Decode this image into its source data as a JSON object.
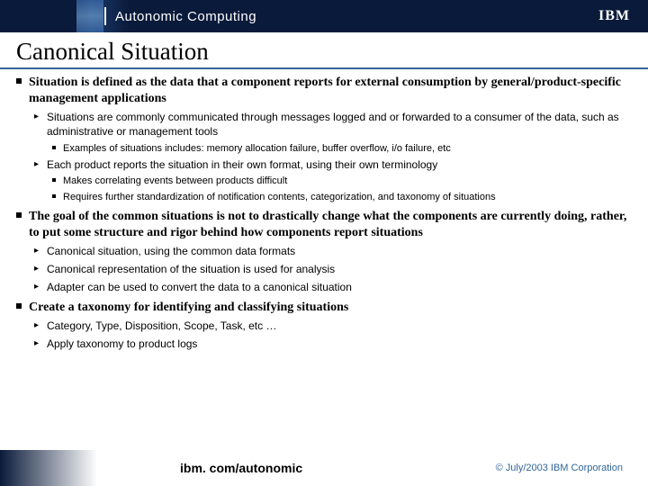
{
  "header": {
    "product_line": "Autonomic Computing",
    "logo_text": "IBM"
  },
  "slide_title": "Canonical Situation",
  "bullets": [
    {
      "text": "Situation is defined as the data that a component reports for external consumption by general/product-specific management applications",
      "sub": [
        {
          "text": "Situations are commonly communicated through messages logged and or forwarded to a consumer of the data, such as administrative or management tools",
          "sub": [
            {
              "text": "Examples of situations includes: memory allocation failure, buffer overflow, i/o failure, etc"
            }
          ]
        },
        {
          "text": "Each product reports the situation in their own format, using their own terminology",
          "sub": [
            {
              "text": "Makes correlating events between products difficult"
            },
            {
              "text": "Requires further standardization of notification contents, categorization, and taxonomy of situations"
            }
          ]
        }
      ]
    },
    {
      "text": "The goal of the common situations is not to drastically change what the components are currently doing, rather, to put some structure and rigor behind how components report situations",
      "sub": [
        {
          "text": "Canonical situation, using the common data formats"
        },
        {
          "text": "Canonical representation of the situation is used for analysis"
        },
        {
          "text": "Adapter can be used to convert the data to a canonical situation"
        }
      ]
    },
    {
      "text": "Create a taxonomy for identifying and classifying situations",
      "sub": [
        {
          "text": "Category, Type, Disposition, Scope, Task, etc …"
        },
        {
          "text": "Apply taxonomy to product logs"
        }
      ]
    }
  ],
  "footer": {
    "url": "ibm. com/autonomic",
    "copyright": "© July/2003 IBM Corporation"
  },
  "colors": {
    "header_bg": "#0a1a3a",
    "rule": "#326598",
    "copy": "#326598"
  }
}
